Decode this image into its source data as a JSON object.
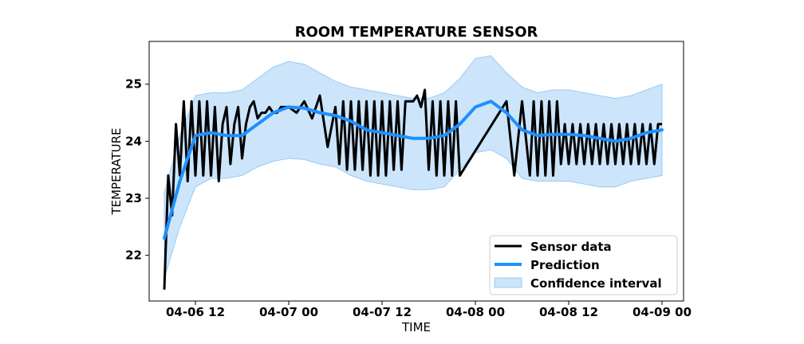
{
  "chart_data": {
    "type": "line",
    "title": "ROOM TEMPERATURE SENSOR",
    "xlabel": "TIME",
    "ylabel": "TEMPERATURE",
    "x_ticks": [
      "04-06 12",
      "04-07 00",
      "04-07 12",
      "04-08 00",
      "04-08 12",
      "04-09 00"
    ],
    "y_ticks": [
      22,
      23,
      24,
      25
    ],
    "ylim": [
      21.2,
      25.75
    ],
    "grid": false,
    "legend_position": "lower-right",
    "colors": {
      "sensor": "#000000",
      "prediction": "#1e90ff",
      "confidence_fill": "#cce5fb",
      "confidence_edge": "#99ccf5"
    },
    "series": [
      {
        "name": "Sensor data",
        "type": "line",
        "x": [
          "04-06 08:00",
          "04-06 08:30",
          "04-06 09:00",
          "04-06 09:30",
          "04-06 10:00",
          "04-06 10:30",
          "04-06 11:00",
          "04-06 11:30",
          "04-06 12:00",
          "04-06 12:30",
          "04-06 13:00",
          "04-06 13:30",
          "04-06 14:00",
          "04-06 14:30",
          "04-06 15:00",
          "04-06 15:30",
          "04-06 16:00",
          "04-06 16:30",
          "04-06 17:00",
          "04-06 17:30",
          "04-06 18:00",
          "04-06 18:30",
          "04-06 19:00",
          "04-06 19:30",
          "04-06 20:00",
          "04-06 20:30",
          "04-06 21:00",
          "04-06 21:30",
          "04-06 22:00",
          "04-06 22:30",
          "04-06 23:00",
          "04-06 23:30",
          "04-07 00:00",
          "04-07 01:00",
          "04-07 02:00",
          "04-07 03:00",
          "04-07 04:00",
          "04-07 05:00",
          "04-07 06:00",
          "04-07 06:30",
          "04-07 07:00",
          "04-07 07:30",
          "04-07 08:00",
          "04-07 08:30",
          "04-07 09:00",
          "04-07 09:30",
          "04-07 10:00",
          "04-07 10:30",
          "04-07 11:00",
          "04-07 11:30",
          "04-07 12:00",
          "04-07 12:30",
          "04-07 13:00",
          "04-07 13:30",
          "04-07 14:00",
          "04-07 14:30",
          "04-07 15:00",
          "04-07 15:30",
          "04-07 16:00",
          "04-07 16:30",
          "04-07 17:00",
          "04-07 17:30",
          "04-07 18:00",
          "04-07 18:30",
          "04-07 19:00",
          "04-07 19:30",
          "04-07 20:00",
          "04-07 20:30",
          "04-07 21:00",
          "04-07 21:30",
          "04-07 22:00",
          "04-08 04:00",
          "04-08 05:00",
          "04-08 06:00",
          "04-08 07:00",
          "04-08 07:30",
          "04-08 08:00",
          "04-08 08:30",
          "04-08 09:00",
          "04-08 09:30",
          "04-08 10:00",
          "04-08 10:30",
          "04-08 11:00",
          "04-08 11:30",
          "04-08 12:00",
          "04-08 12:30",
          "04-08 13:00",
          "04-08 13:30",
          "04-08 14:00",
          "04-08 14:30",
          "04-08 15:00",
          "04-08 15:30",
          "04-08 16:00",
          "04-08 16:30",
          "04-08 17:00",
          "04-08 17:30",
          "04-08 18:00",
          "04-08 18:30",
          "04-08 19:00",
          "04-08 19:30",
          "04-08 20:00",
          "04-08 20:30",
          "04-08 21:00",
          "04-08 21:30",
          "04-08 22:00",
          "04-08 22:30",
          "04-08 23:00",
          "04-08 23:30",
          "04-09 00:00"
        ],
        "y": [
          21.4,
          23.4,
          22.7,
          24.3,
          23.4,
          24.7,
          23.3,
          24.7,
          23.4,
          24.7,
          23.4,
          24.7,
          23.4,
          24.6,
          23.3,
          24.3,
          24.6,
          23.6,
          24.3,
          24.6,
          23.7,
          24.3,
          24.6,
          24.7,
          24.4,
          24.5,
          24.5,
          24.6,
          24.5,
          24.5,
          24.6,
          24.6,
          24.6,
          24.5,
          24.7,
          24.4,
          24.8,
          23.9,
          24.6,
          23.6,
          24.7,
          23.5,
          24.7,
          23.5,
          24.7,
          23.5,
          24.7,
          23.4,
          24.7,
          23.4,
          24.7,
          23.4,
          24.7,
          23.5,
          24.7,
          23.5,
          24.7,
          24.7,
          24.7,
          24.8,
          24.6,
          24.9,
          23.5,
          24.7,
          23.4,
          24.7,
          23.4,
          24.7,
          23.4,
          24.7,
          23.4,
          24.7,
          23.4,
          24.7,
          23.4,
          24.7,
          23.4,
          24.7,
          23.4,
          24.7,
          23.4,
          24.7,
          23.6,
          24.3,
          23.6,
          24.3,
          23.6,
          24.3,
          23.6,
          24.3,
          23.6,
          24.3,
          23.6,
          24.3,
          23.6,
          24.3,
          23.6,
          24.3,
          23.6,
          24.3,
          23.6,
          24.3,
          23.6,
          24.3,
          23.6,
          24.3,
          23.6,
          24.3,
          24.3
        ]
      },
      {
        "name": "Prediction",
        "type": "line",
        "x": [
          "04-06 08:00",
          "04-06 10:00",
          "04-06 12:00",
          "04-06 14:00",
          "04-06 16:00",
          "04-06 18:00",
          "04-06 20:00",
          "04-06 22:00",
          "04-07 00:00",
          "04-07 02:00",
          "04-07 04:00",
          "04-07 06:00",
          "04-07 08:00",
          "04-07 10:00",
          "04-07 12:00",
          "04-07 14:00",
          "04-07 16:00",
          "04-07 18:00",
          "04-07 20:00",
          "04-07 22:00",
          "04-08 00:00",
          "04-08 02:00",
          "04-08 04:00",
          "04-08 06:00",
          "04-08 08:00",
          "04-08 10:00",
          "04-08 12:00",
          "04-08 14:00",
          "04-08 16:00",
          "04-08 18:00",
          "04-08 20:00",
          "04-08 22:00",
          "04-09 00:00"
        ],
        "y": [
          22.3,
          23.3,
          24.1,
          24.15,
          24.1,
          24.1,
          24.3,
          24.5,
          24.6,
          24.58,
          24.5,
          24.45,
          24.35,
          24.2,
          24.15,
          24.1,
          24.05,
          24.05,
          24.1,
          24.3,
          24.6,
          24.7,
          24.5,
          24.2,
          24.1,
          24.12,
          24.12,
          24.1,
          24.05,
          24.0,
          24.05,
          24.15,
          24.2
        ]
      },
      {
        "name": "Confidence interval",
        "type": "band",
        "x": [
          "04-06 08:00",
          "04-06 10:00",
          "04-06 12:00",
          "04-06 14:00",
          "04-06 16:00",
          "04-06 18:00",
          "04-06 20:00",
          "04-06 22:00",
          "04-07 00:00",
          "04-07 02:00",
          "04-07 04:00",
          "04-07 06:00",
          "04-07 08:00",
          "04-07 10:00",
          "04-07 12:00",
          "04-07 14:00",
          "04-07 16:00",
          "04-07 18:00",
          "04-07 20:00",
          "04-07 22:00",
          "04-08 00:00",
          "04-08 02:00",
          "04-08 04:00",
          "04-08 06:00",
          "04-08 08:00",
          "04-08 10:00",
          "04-08 12:00",
          "04-08 14:00",
          "04-08 16:00",
          "04-08 18:00",
          "04-08 20:00",
          "04-08 22:00",
          "04-09 00:00"
        ],
        "lower": [
          21.6,
          22.5,
          23.2,
          23.35,
          23.35,
          23.4,
          23.55,
          23.65,
          23.7,
          23.68,
          23.6,
          23.55,
          23.4,
          23.3,
          23.25,
          23.2,
          23.15,
          23.15,
          23.2,
          23.5,
          23.8,
          23.85,
          23.7,
          23.35,
          23.3,
          23.3,
          23.3,
          23.25,
          23.2,
          23.2,
          23.3,
          23.35,
          23.4
        ],
        "upper": [
          23.1,
          24.1,
          24.8,
          24.85,
          24.85,
          24.9,
          25.1,
          25.3,
          25.4,
          25.35,
          25.2,
          25.05,
          24.95,
          24.9,
          24.85,
          24.8,
          24.75,
          24.75,
          24.85,
          25.1,
          25.45,
          25.5,
          25.2,
          24.95,
          24.85,
          24.9,
          24.9,
          24.85,
          24.8,
          24.75,
          24.8,
          24.9,
          25.0
        ]
      }
    ]
  }
}
